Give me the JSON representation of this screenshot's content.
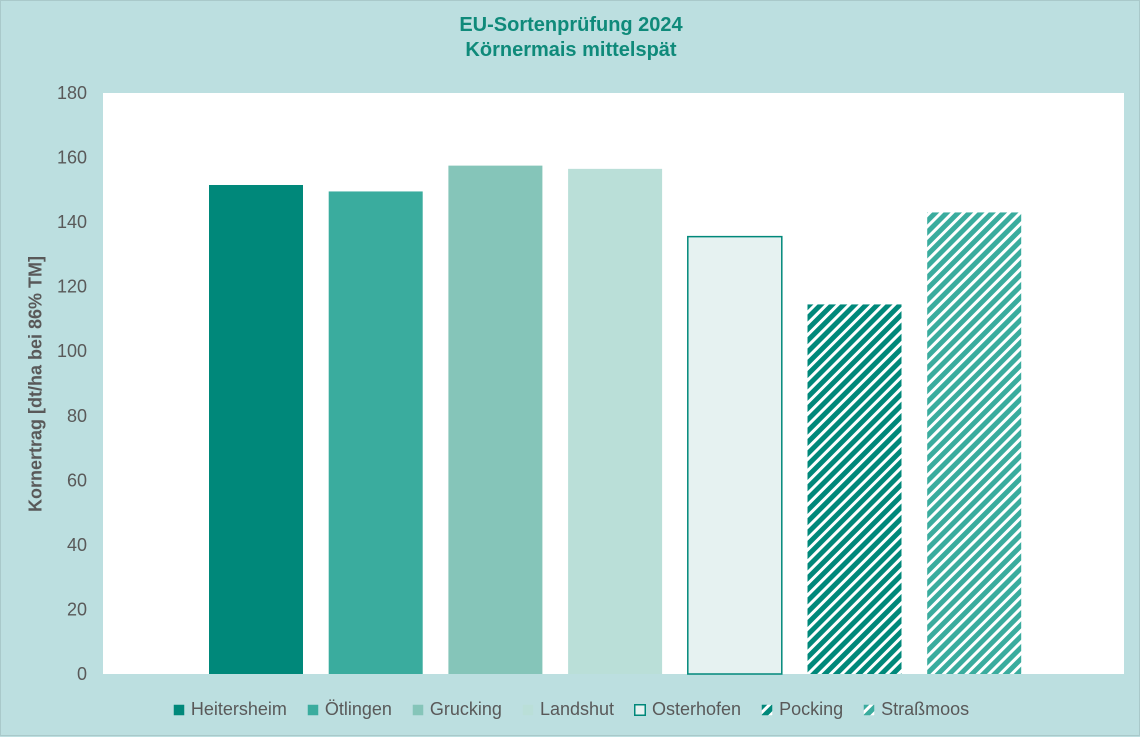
{
  "chart_data": {
    "type": "bar",
    "title": [
      "EU-Sortenprüfung 2024",
      "Körnermais mittelspät"
    ],
    "xlabel": "",
    "ylabel": "Kornertrag [dt/ha bei 86% TM]",
    "ylim": [
      0,
      180
    ],
    "yticks": [
      0,
      20,
      40,
      60,
      80,
      100,
      120,
      140,
      160,
      180
    ],
    "legend_position": "bottom",
    "categories": [
      "Heitersheim",
      "Ötlingen",
      "Grucking",
      "Landshut",
      "Osterhofen",
      "Pocking",
      "Straßmoos"
    ],
    "values": [
      151.5,
      149.5,
      157.5,
      156.5,
      135.5,
      114.5,
      143.0
    ],
    "styles": [
      {
        "fill": "#00887a",
        "pattern": "solid"
      },
      {
        "fill": "#3aac9e",
        "pattern": "solid"
      },
      {
        "fill": "#85c5b9",
        "pattern": "solid"
      },
      {
        "fill": "#badfd8",
        "pattern": "solid"
      },
      {
        "fill": "#e6f2f1",
        "pattern": "outline",
        "stroke": "#00887a"
      },
      {
        "fill": "#00887a",
        "pattern": "dense-diagonal"
      },
      {
        "fill": "#3aac9e",
        "pattern": "light-diagonal"
      }
    ]
  }
}
